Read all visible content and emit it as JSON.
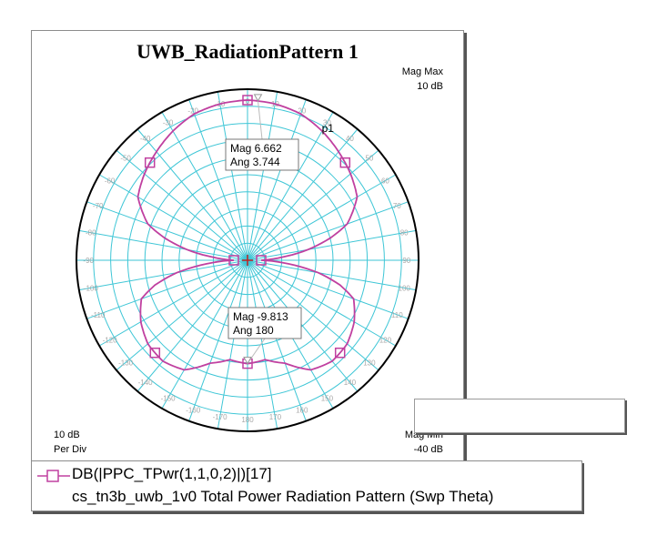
{
  "chart_data": {
    "type": "polar",
    "title": "UWB_RadiationPattern 1",
    "radial_axis": {
      "max_label": "Mag Max",
      "max_value": "10 dB",
      "min_label": "Mag Min",
      "min_value": "-40 dB",
      "div_label": "10 dB",
      "div_unit": "Per Div",
      "max_db": 10,
      "min_db": -40
    },
    "angle_ticks": [
      0,
      10,
      20,
      30,
      40,
      50,
      60,
      70,
      80,
      90,
      100,
      110,
      120,
      130,
      140,
      150,
      160,
      170,
      180
    ],
    "series": [
      {
        "name": "DB(|PPC_TPwr(1,1,0,2)|)[17]",
        "description": "cs_tn3b_uwb_1v0 Total Power Radiation Pattern (Swp Theta)",
        "color": "#c040a0",
        "theta_deg": [
          0,
          10,
          20,
          30,
          40,
          50,
          60,
          70,
          75,
          80,
          85,
          90,
          95,
          100,
          105,
          110,
          120,
          130,
          140,
          150,
          160,
          170,
          180
        ],
        "mag_db": [
          6.8,
          6.4,
          5.5,
          3.6,
          1.4,
          -0.7,
          -3.0,
          -9.0,
          -15.0,
          -22.0,
          -30.0,
          -36.0,
          -28.0,
          -19.0,
          -12.0,
          -7.0,
          -4.0,
          -2.0,
          -1.5,
          -3.0,
          -8.0,
          -10.5,
          -9.8
        ]
      }
    ],
    "markers": [
      {
        "id": "p1",
        "label": "p1",
        "mag": "Mag 6.662",
        "ang": "Ang 3.744",
        "theta_deg": 3.744,
        "mag_db": 6.662
      },
      {
        "id": "m2",
        "mag": "Mag -9.813",
        "ang": "Ang 180",
        "theta_deg": 180,
        "mag_db": -9.813
      }
    ]
  }
}
